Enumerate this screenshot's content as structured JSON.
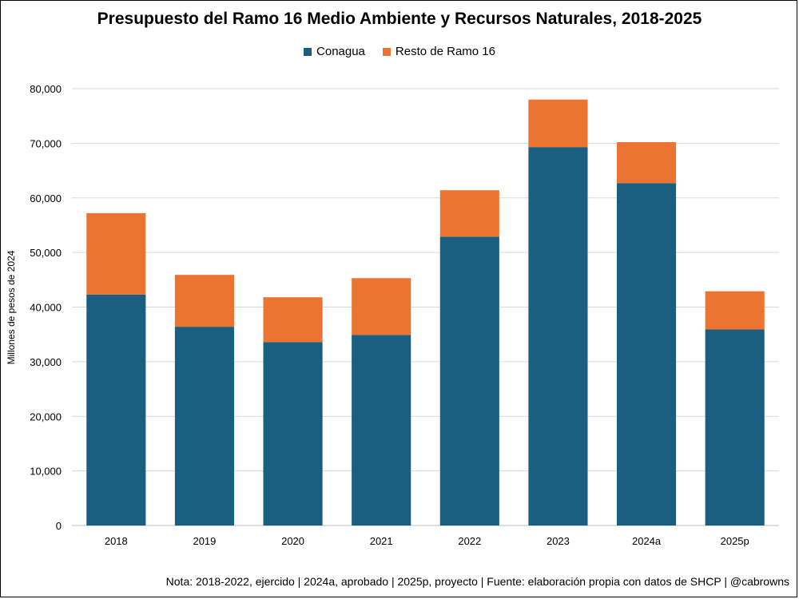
{
  "chart_data": {
    "type": "bar",
    "stacked": true,
    "title": "Presupuesto del Ramo 16 Medio Ambiente y Recursos Naturales, 2018-2025",
    "xlabel": "",
    "ylabel": "Millones de pesos de 2024",
    "ylim": [
      0,
      80000
    ],
    "yticks": [
      "0",
      "10,000",
      "20,000",
      "30,000",
      "40,000",
      "50,000",
      "60,000",
      "70,000",
      "80,000"
    ],
    "categories": [
      "2018",
      "2019",
      "2020",
      "2021",
      "2022",
      "2023",
      "2024a",
      "2025p"
    ],
    "series": [
      {
        "name": "Conagua",
        "color": "#1a5e80",
        "values": [
          42300,
          36400,
          33600,
          34900,
          52900,
          69300,
          62700,
          35900
        ]
      },
      {
        "name": "Resto de Ramo 16",
        "color": "#ec7433",
        "values": [
          14900,
          9500,
          8200,
          10400,
          8500,
          8700,
          7500,
          7000
        ]
      }
    ],
    "legend_position": "top-center",
    "grid": true,
    "note": "Nota: 2018-2022, ejercido | 2024a, aprobado | 2025p, proyecto | Fuente: elaboración propia con datos de SHCP | @cabrowns"
  }
}
